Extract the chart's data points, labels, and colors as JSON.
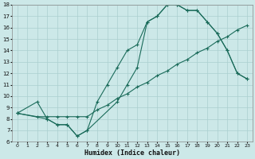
{
  "title": "",
  "xlabel": "Humidex (Indice chaleur)",
  "bg_color": "#cce8e8",
  "line_color": "#1a6b5a",
  "grid_color": "#aacfcf",
  "line1_x": [
    0,
    2,
    3,
    4,
    5,
    6,
    7,
    8,
    9,
    10,
    11,
    12,
    13,
    14,
    15,
    16,
    17,
    18,
    19,
    20,
    21,
    22,
    23
  ],
  "line1_y": [
    8.5,
    9.5,
    8,
    7.5,
    7.5,
    6.5,
    7,
    9.5,
    11,
    12.5,
    14,
    14.5,
    16.5,
    17.0,
    18,
    18,
    17.5,
    17.5,
    16.5,
    15.5,
    14,
    12,
    11.5
  ],
  "line2_x": [
    0,
    2,
    3,
    4,
    5,
    6,
    7,
    8,
    9,
    10,
    11,
    12,
    13,
    14,
    15,
    16,
    17,
    18,
    19,
    20,
    21,
    22,
    23
  ],
  "line2_y": [
    8.5,
    8.2,
    8.2,
    8.2,
    8.2,
    8.2,
    8.2,
    8.8,
    9.2,
    9.8,
    10.2,
    10.8,
    11.2,
    11.8,
    12.2,
    12.8,
    13.2,
    13.8,
    14.2,
    14.8,
    15.2,
    15.8,
    16.2
  ],
  "line3_x": [
    0,
    3,
    4,
    5,
    6,
    7,
    10,
    11,
    12,
    13,
    14,
    15,
    16,
    17,
    18,
    19,
    20,
    21,
    22,
    23
  ],
  "line3_y": [
    8.5,
    8.0,
    7.5,
    7.5,
    6.5,
    7.0,
    9.5,
    11.0,
    12.5,
    16.5,
    17.0,
    18.0,
    18.0,
    17.5,
    17.5,
    16.5,
    15.5,
    14.0,
    12.0,
    11.5
  ],
  "xlim": [
    -0.5,
    23.5
  ],
  "ylim": [
    6,
    18
  ],
  "xticks": [
    0,
    1,
    2,
    3,
    4,
    5,
    6,
    7,
    8,
    9,
    10,
    11,
    12,
    13,
    14,
    15,
    16,
    17,
    18,
    19,
    20,
    21,
    22,
    23
  ],
  "yticks": [
    6,
    7,
    8,
    9,
    10,
    11,
    12,
    13,
    14,
    15,
    16,
    17,
    18
  ]
}
